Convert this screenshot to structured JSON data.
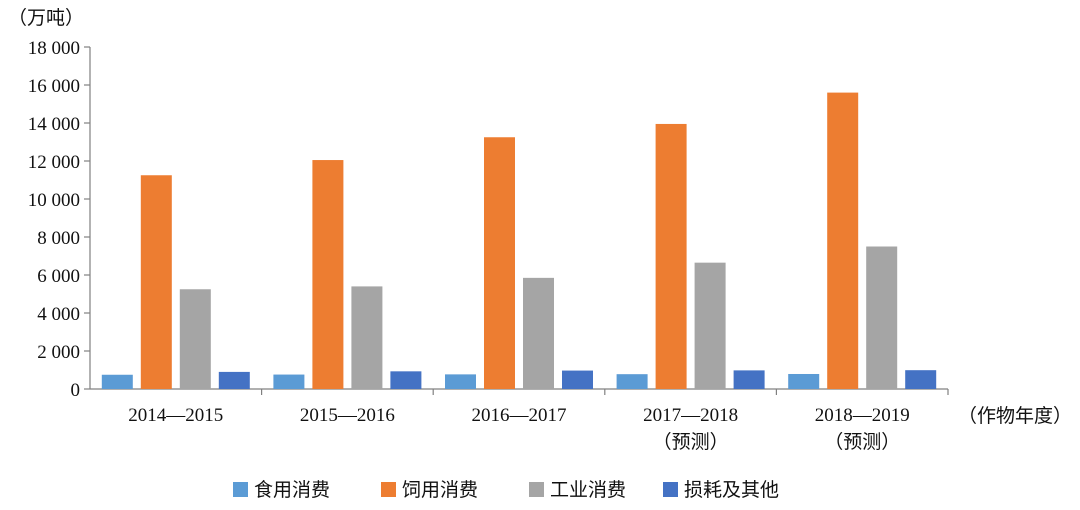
{
  "chart_data": {
    "type": "bar",
    "yunit": "（万吨）",
    "xunit": "（作物年度）",
    "categories": [
      [
        "2014—2015"
      ],
      [
        "2015—2016"
      ],
      [
        "2016—2017"
      ],
      [
        "2017—2018",
        "（预测）"
      ],
      [
        "2018—2019",
        "（预测）"
      ]
    ],
    "series": [
      {
        "name": "食用消费",
        "color": "#5b9bd5",
        "values": [
          750,
          760,
          770,
          780,
          790
        ]
      },
      {
        "name": "饲用消费",
        "color": "#ed7d31",
        "values": [
          11250,
          12050,
          13250,
          13950,
          15600
        ]
      },
      {
        "name": "工业消费",
        "color": "#a5a5a5",
        "values": [
          5250,
          5400,
          5850,
          6650,
          7500
        ]
      },
      {
        "name": "损耗及其他",
        "color": "#4472c4",
        "values": [
          900,
          930,
          970,
          980,
          990
        ]
      }
    ],
    "ylim": [
      0,
      18000
    ],
    "yticks": [
      0,
      2000,
      4000,
      6000,
      8000,
      10000,
      12000,
      14000,
      16000,
      18000
    ],
    "ytick_labels": [
      "0",
      "2 000",
      "4 000",
      "6 000",
      "8 000",
      "10 000",
      "12 000",
      "14 000",
      "16 000",
      "18 000"
    ],
    "grid": false,
    "legend_position": "bottom"
  }
}
